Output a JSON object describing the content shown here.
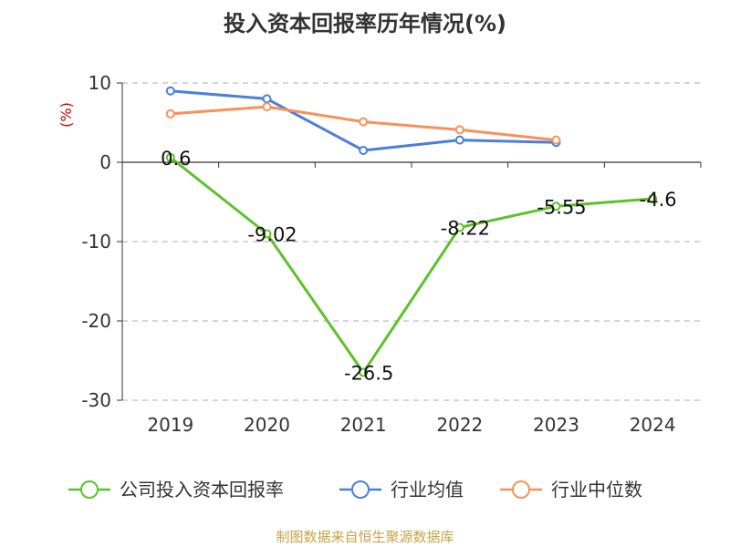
{
  "chart_data": {
    "type": "line",
    "title": "投入资本回报率历年情况(%)",
    "ylabel": "(%)",
    "xlabel": "",
    "categories": [
      "2019",
      "2020",
      "2021",
      "2022",
      "2023",
      "2024"
    ],
    "ylim": [
      -30,
      10
    ],
    "yticks": [
      10,
      0,
      -10,
      -20,
      -30
    ],
    "grid": true,
    "legend_position": "bottom",
    "series": [
      {
        "name": "公司投入资本回报率",
        "color": "#5cc22a",
        "values": [
          0.6,
          -9.02,
          -26.5,
          -8.22,
          -5.55,
          -4.6
        ],
        "labels": [
          "0.6",
          "-9.02",
          "-26.5",
          "-8.22",
          "-5.55",
          "-4.6"
        ]
      },
      {
        "name": "行业均值",
        "color": "#4a7fdc",
        "values": [
          9.0,
          8.0,
          1.5,
          2.8,
          2.5,
          null
        ]
      },
      {
        "name": "行业中位数",
        "color": "#f79159",
        "values": [
          6.1,
          7.0,
          5.1,
          4.1,
          2.8,
          null
        ]
      }
    ]
  },
  "source": "制图数据来自恒生聚源数据库"
}
